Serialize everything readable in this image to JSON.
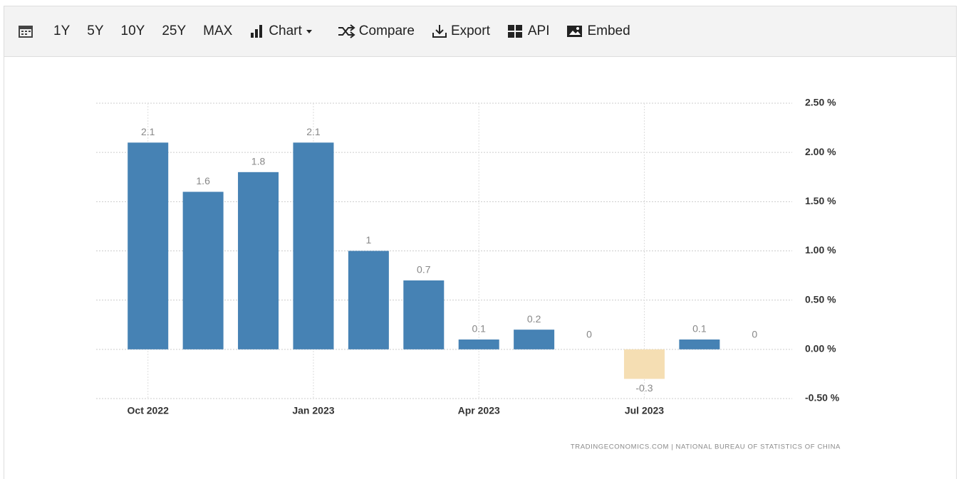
{
  "toolbar": {
    "ranges": [
      "1Y",
      "5Y",
      "10Y",
      "25Y",
      "MAX"
    ],
    "chart": "Chart",
    "compare": "Compare",
    "export": "Export",
    "api": "API",
    "embed": "Embed"
  },
  "chart_data": {
    "type": "bar",
    "categories": [
      "Oct 2022",
      null,
      null,
      "Jan 2023",
      null,
      null,
      "Apr 2023",
      null,
      null,
      "Jul 2023",
      null,
      null
    ],
    "values": [
      2.1,
      1.6,
      1.8,
      2.1,
      1,
      0.7,
      0.1,
      0.2,
      0,
      -0.3,
      0.1,
      0
    ],
    "color": "#4682b4",
    "negative_color": "#f5deb3",
    "ylim": [
      -0.5,
      2.5
    ],
    "yticks": [
      {
        "value": -0.5,
        "label": "-0.50 %"
      },
      {
        "value": 0,
        "label": "0.00 %"
      },
      {
        "value": 0.5,
        "label": "0.50 %"
      },
      {
        "value": 1,
        "label": "1.00 %"
      },
      {
        "value": 1.5,
        "label": "1.50 %"
      },
      {
        "value": 2,
        "label": "2.00 %"
      },
      {
        "value": 2.5,
        "label": "2.50 %"
      }
    ],
    "grid": true,
    "source": "TRADINGECONOMICS.COM | NATIONAL BUREAU OF STATISTICS OF CHINA"
  }
}
